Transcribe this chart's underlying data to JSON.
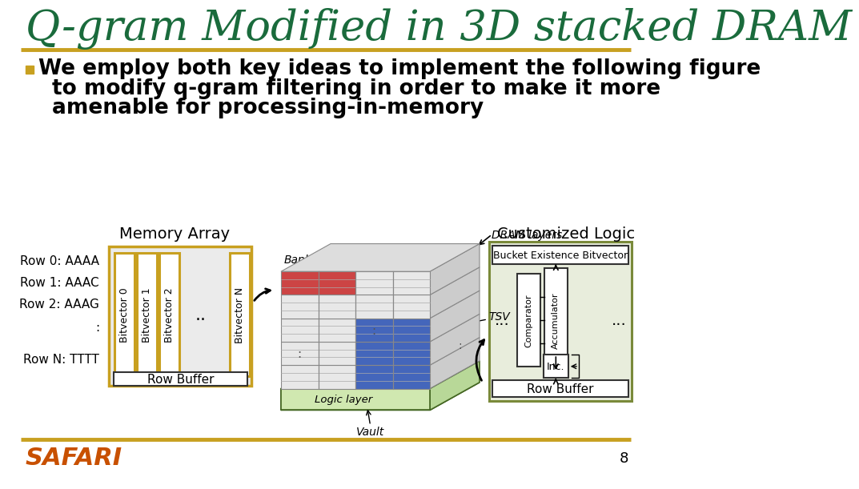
{
  "title": "Q-gram Modified in 3D stacked DRAM",
  "title_color": "#1a6b3c",
  "gold_line_color": "#c8a020",
  "bullet_color": "#c8a020",
  "bullet_text_lines": [
    "We employ both key ideas to implement the following figure",
    "to modify q-gram filtering in order to make it more",
    "amenable for processing-in-memory"
  ],
  "label_memory_array": "Memory Array",
  "label_customized_logic": "Customized Logic",
  "row_labels": [
    "Row 0: AAAA",
    "Row 1: AAAC",
    "Row 2: AAAG",
    ":",
    "Row N: TTTT"
  ],
  "bitvector_labels": [
    "Bitvector 0",
    "Bitvector 1",
    "Bitvector 2",
    "Bitvector N"
  ],
  "row_buffer_label": "Row Buffer",
  "dram_label": "DRAM layers",
  "bank_label": "Bank",
  "tsv_label": "TSV",
  "logic_layer_label": "Logic layer",
  "vault_label": "Vault",
  "bucket_label": "Bucket Existence Bitvector",
  "comparator_label": "Comparator",
  "accumulator_label": "Accumulator",
  "inc_label": "Inc.",
  "row_buffer2_label": "Row Buffer",
  "safari_color": "#c85000",
  "page_number": "8",
  "bg_color": "#ffffff",
  "memory_array_fill": "#ebebeb",
  "memory_array_border": "#c8a020",
  "bv_fill": "#ffffff",
  "customized_logic_fill": "#e8eddc",
  "customized_logic_border": "#7a8a3a",
  "dram_red_color": "#cc4444",
  "dram_blue_color": "#4466bb",
  "dram_green_fill": "#d8eec8",
  "dram_layer_fill": "#e8e8e8",
  "dram_grid_color": "#999999",
  "logic_layer_fill": "#d0e8b0"
}
